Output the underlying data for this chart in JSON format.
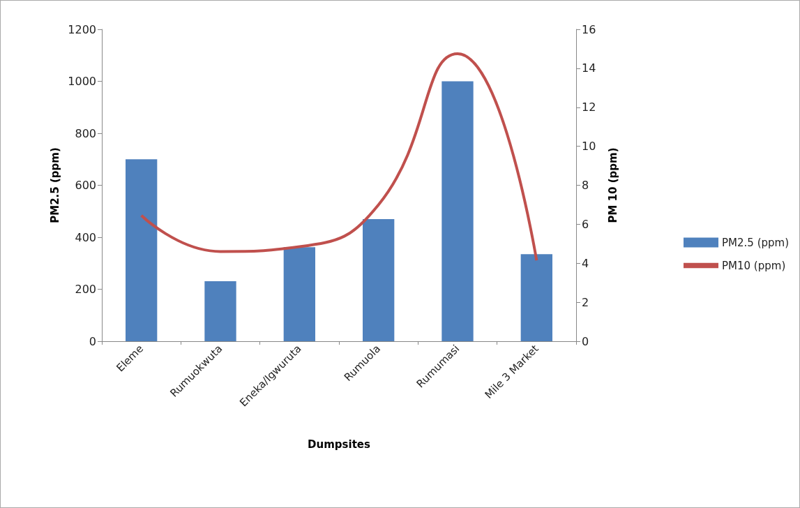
{
  "chart_data": {
    "type": "bar",
    "xlabel": "Dumpsites",
    "ylabel": "PM2.5 (ppm)",
    "y2label": "PM 10 (ppm)",
    "categories": [
      "Eleme",
      "Rumuokwuta",
      "Eneka/Igwuruta",
      "Rumuola",
      "Rumumasi",
      "Mile 3 Market"
    ],
    "series": [
      {
        "name": "PM2.5 (ppm)",
        "color": "#4f81bd",
        "values": [
          700,
          231,
          362,
          470,
          1000,
          335
        ]
      },
      {
        "name": "PM10 (ppm)",
        "type": "line",
        "axis": "y2",
        "color": "#c0504d",
        "values": [
          6.45,
          4.6,
          4.85,
          7.0,
          14.75,
          4.15
        ]
      }
    ],
    "ylim": [
      0,
      1200
    ],
    "yticks": [
      0,
      200,
      400,
      600,
      800,
      1000,
      1200
    ],
    "y2lim": [
      0,
      16
    ],
    "y2ticks": [
      0,
      2,
      4,
      6,
      8,
      10,
      12,
      14,
      16
    ],
    "grid": false,
    "legend": "right",
    "marker": "none"
  }
}
